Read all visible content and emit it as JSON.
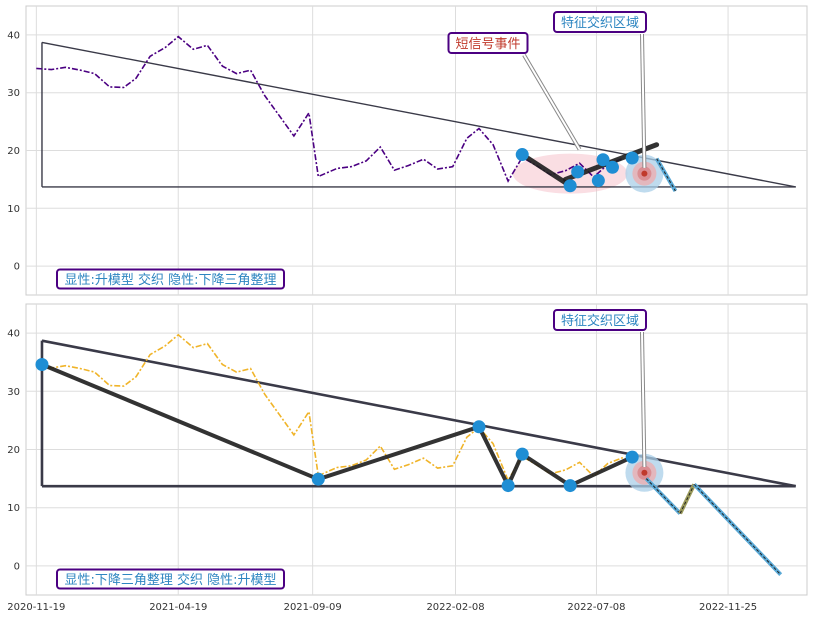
{
  "chart_data": [
    {
      "type": "line",
      "title": "",
      "xlabel": "",
      "ylabel": "",
      "ylim": [
        -5,
        45
      ],
      "yticks": [
        0,
        10,
        20,
        30,
        40
      ],
      "grid": true,
      "x_ticks": [
        "2020-11-19",
        "2021-04-19",
        "2021-09-09",
        "2022-02-08",
        "2022-07-08",
        "2022-11-25"
      ],
      "xlim": [
        "2020-11-08",
        "2023-02-17"
      ],
      "price_color": "#4b0082",
      "price_series": [
        [
          "2020-11-19",
          34.2
        ],
        [
          "2020-12-05",
          34.0
        ],
        [
          "2020-12-20",
          34.4
        ],
        [
          "2021-01-05",
          33.9
        ],
        [
          "2021-01-20",
          33.3
        ],
        [
          "2021-02-05",
          31.0
        ],
        [
          "2021-02-20",
          30.9
        ],
        [
          "2021-03-05",
          32.5
        ],
        [
          "2021-03-20",
          36.3
        ],
        [
          "2021-04-05",
          37.8
        ],
        [
          "2021-04-19",
          39.7
        ],
        [
          "2021-05-05",
          37.5
        ],
        [
          "2021-05-20",
          38.2
        ],
        [
          "2021-06-05",
          34.6
        ],
        [
          "2021-06-20",
          33.3
        ],
        [
          "2021-07-05",
          33.9
        ],
        [
          "2021-07-20",
          29.5
        ],
        [
          "2021-08-05",
          25.9
        ],
        [
          "2021-08-20",
          22.5
        ],
        [
          "2021-09-05",
          26.5
        ],
        [
          "2021-09-15",
          15.5
        ],
        [
          "2021-10-05",
          16.9
        ],
        [
          "2021-10-20",
          17.2
        ],
        [
          "2021-11-05",
          18.2
        ],
        [
          "2021-11-20",
          20.6
        ],
        [
          "2021-12-05",
          16.6
        ],
        [
          "2021-12-20",
          17.4
        ],
        [
          "2022-01-05",
          18.5
        ],
        [
          "2022-01-20",
          16.8
        ],
        [
          "2022-02-05",
          17.2
        ],
        [
          "2022-02-20",
          22.1
        ],
        [
          "2022-03-05",
          23.8
        ],
        [
          "2022-03-20",
          21.0
        ],
        [
          "2022-04-05",
          14.7
        ],
        [
          "2022-04-20",
          18.8
        ],
        [
          "2022-05-05",
          17.4
        ],
        [
          "2022-05-20",
          15.8
        ],
        [
          "2022-06-05",
          16.5
        ],
        [
          "2022-06-20",
          17.8
        ],
        [
          "2022-07-05",
          15.4
        ],
        [
          "2022-07-20",
          17.6
        ],
        [
          "2022-08-05",
          18.6
        ]
      ],
      "triangle": {
        "upper_start": [
          "2020-11-25",
          38.7
        ],
        "apex": [
          "2023-02-05",
          13.7
        ],
        "baseline_value": 13.7
      },
      "highlight_region": {
        "from": "2022-04-10",
        "to": "2022-08-10",
        "center_value": 16.0
      },
      "pivots": [
        [
          "2022-04-20",
          19.3
        ],
        [
          "2022-06-10",
          13.9
        ],
        [
          "2022-06-18",
          16.3
        ],
        [
          "2022-07-10",
          14.8
        ],
        [
          "2022-07-15",
          18.4
        ],
        [
          "2022-07-25",
          17.1
        ],
        [
          "2022-08-15",
          18.7
        ]
      ],
      "trend_segments": [
        [
          [
            "2022-04-20",
            19.3
          ],
          [
            "2022-06-10",
            13.9
          ]
        ],
        [
          [
            "2022-06-05",
            15.0
          ],
          [
            "2022-09-10",
            21.0
          ]
        ]
      ],
      "forecast_segments": [
        [
          [
            "2022-09-10",
            18.6
          ],
          [
            "2022-09-30",
            13.0
          ]
        ]
      ],
      "target_point": [
        "2022-08-28",
        16.0
      ],
      "annotations": [
        {
          "text": "短信号事件",
          "color": "#c0392b",
          "target": [
            "2022-06-20",
            20.2
          ]
        },
        {
          "text": "特征交织区域",
          "color": "#2e86c1",
          "target": [
            "2022-08-28",
            17.0
          ]
        }
      ],
      "pattern_label": "显性:升模型 交织 隐性:下降三角整理"
    },
    {
      "type": "line",
      "title": "",
      "xlabel": "",
      "ylabel": "",
      "ylim": [
        -5,
        45
      ],
      "yticks": [
        0,
        10,
        20,
        30,
        40
      ],
      "grid": true,
      "x_ticks": [
        "2020-11-19",
        "2021-04-19",
        "2021-09-09",
        "2022-02-08",
        "2022-07-08",
        "2022-11-25"
      ],
      "xlim": [
        "2020-11-08",
        "2023-02-17"
      ],
      "price_color": "#f0b429",
      "price_series": [
        [
          "2020-11-19",
          34.2
        ],
        [
          "2020-12-05",
          34.0
        ],
        [
          "2020-12-20",
          34.4
        ],
        [
          "2021-01-05",
          33.9
        ],
        [
          "2021-01-20",
          33.3
        ],
        [
          "2021-02-05",
          31.0
        ],
        [
          "2021-02-20",
          30.9
        ],
        [
          "2021-03-05",
          32.5
        ],
        [
          "2021-03-20",
          36.3
        ],
        [
          "2021-04-05",
          37.8
        ],
        [
          "2021-04-19",
          39.7
        ],
        [
          "2021-05-05",
          37.5
        ],
        [
          "2021-05-20",
          38.2
        ],
        [
          "2021-06-05",
          34.6
        ],
        [
          "2021-06-20",
          33.3
        ],
        [
          "2021-07-05",
          33.9
        ],
        [
          "2021-07-20",
          29.5
        ],
        [
          "2021-08-05",
          25.9
        ],
        [
          "2021-08-20",
          22.5
        ],
        [
          "2021-09-05",
          26.5
        ],
        [
          "2021-09-15",
          15.5
        ],
        [
          "2021-10-05",
          16.9
        ],
        [
          "2021-10-20",
          17.2
        ],
        [
          "2021-11-05",
          18.2
        ],
        [
          "2021-11-20",
          20.6
        ],
        [
          "2021-12-05",
          16.6
        ],
        [
          "2021-12-20",
          17.4
        ],
        [
          "2022-01-05",
          18.5
        ],
        [
          "2022-01-20",
          16.8
        ],
        [
          "2022-02-05",
          17.2
        ],
        [
          "2022-02-20",
          22.1
        ],
        [
          "2022-03-05",
          23.8
        ],
        [
          "2022-03-20",
          21.0
        ],
        [
          "2022-04-05",
          14.7
        ],
        [
          "2022-04-20",
          18.8
        ],
        [
          "2022-05-05",
          17.4
        ],
        [
          "2022-05-20",
          15.8
        ],
        [
          "2022-06-05",
          16.5
        ],
        [
          "2022-06-20",
          17.8
        ],
        [
          "2022-07-05",
          15.4
        ],
        [
          "2022-07-20",
          17.6
        ],
        [
          "2022-08-05",
          18.6
        ]
      ],
      "triangle": {
        "upper_start": [
          "2020-11-25",
          38.7
        ],
        "apex": [
          "2023-02-05",
          13.7
        ],
        "baseline_value": 13.7
      },
      "pivots": [
        [
          "2020-11-25",
          34.6
        ],
        [
          "2021-09-15",
          14.9
        ],
        [
          "2022-03-05",
          23.9
        ],
        [
          "2022-04-05",
          13.8
        ],
        [
          "2022-04-20",
          19.2
        ],
        [
          "2022-06-10",
          13.8
        ],
        [
          "2022-08-15",
          18.7
        ]
      ],
      "trend_segments": [
        [
          [
            "2020-11-25",
            34.6
          ],
          [
            "2021-09-15",
            14.9
          ]
        ],
        [
          [
            "2021-09-15",
            14.9
          ],
          [
            "2022-03-05",
            23.9
          ]
        ],
        [
          [
            "2022-03-05",
            23.9
          ],
          [
            "2022-04-05",
            13.8
          ]
        ],
        [
          [
            "2022-04-05",
            13.8
          ],
          [
            "2022-04-20",
            19.2
          ]
        ],
        [
          [
            "2022-04-20",
            19.2
          ],
          [
            "2022-06-10",
            13.8
          ]
        ],
        [
          [
            "2022-06-10",
            13.8
          ],
          [
            "2022-08-15",
            18.7
          ]
        ]
      ],
      "forecast_segments": [
        [
          [
            "2022-08-30",
            15.0
          ],
          [
            "2022-10-05",
            9.0
          ]
        ],
        [
          [
            "2022-10-05",
            9.0
          ],
          [
            "2022-10-20",
            14.0
          ]
        ],
        [
          [
            "2022-10-20",
            14.0
          ],
          [
            "2023-01-20",
            -1.5
          ]
        ]
      ],
      "target_point": [
        "2022-08-28",
        16.0
      ],
      "annotations": [
        {
          "text": "特征交织区域",
          "color": "#2e86c1",
          "target": [
            "2022-08-28",
            17.0
          ]
        }
      ],
      "pattern_label": "显性:下降三角整理 交织 隐性:升模型"
    }
  ]
}
